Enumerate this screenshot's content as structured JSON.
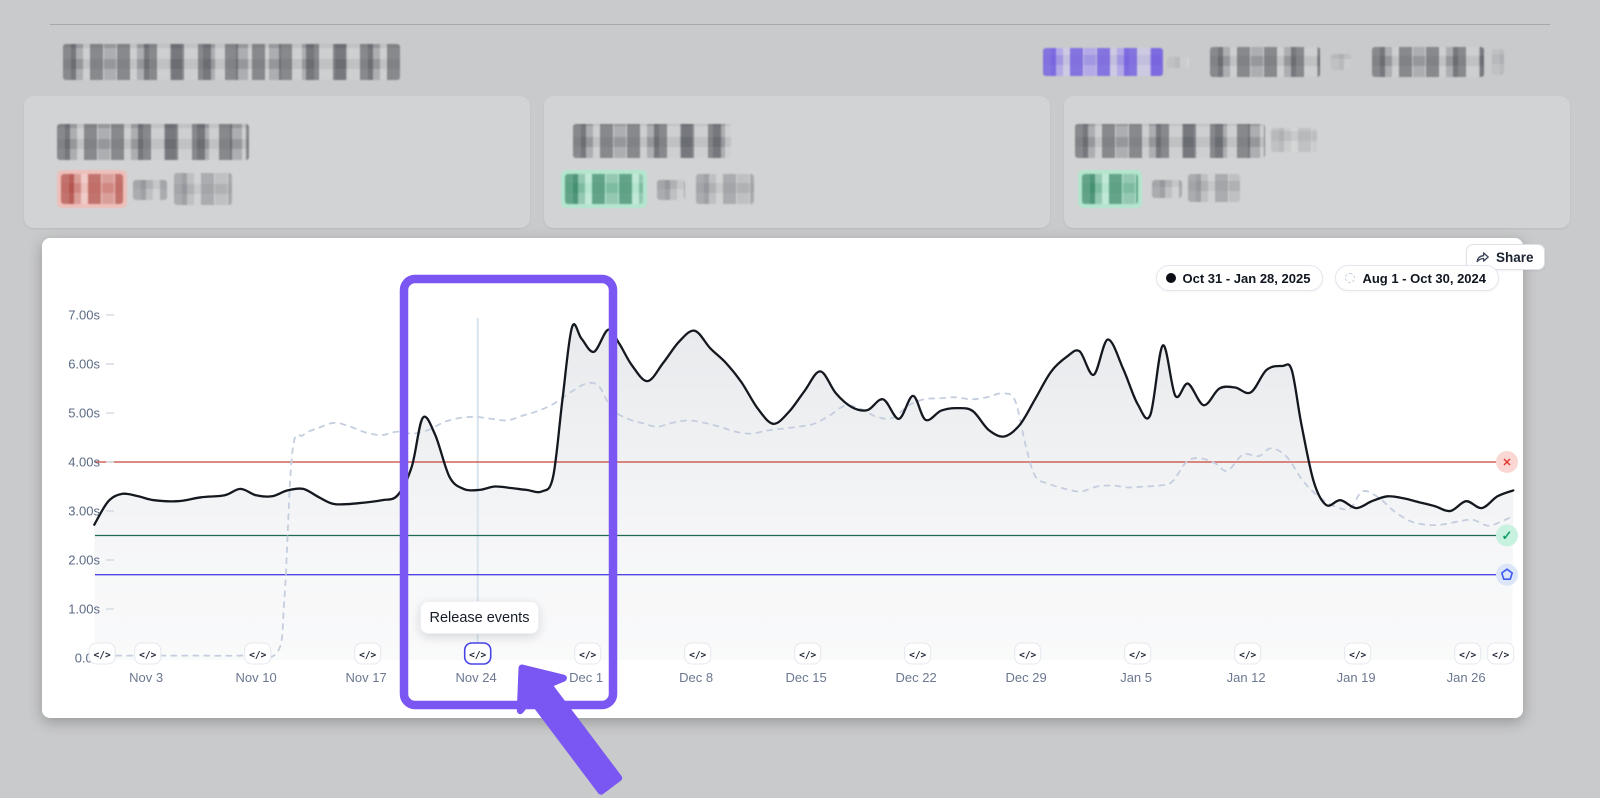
{
  "chart": {
    "share_label": "Share",
    "legend": [
      {
        "label": "Oct 31 - Jan 28, 2025",
        "marker": "solid-dot"
      },
      {
        "label": "Aug 1 - Oct 30, 2024",
        "marker": "dashed-circle"
      }
    ],
    "tooltip": "Release events",
    "release_icon_glyph": "</>"
  },
  "chart_data": {
    "type": "line",
    "unit": "seconds",
    "ylim": [
      0,
      7.3
    ],
    "grid": false,
    "legend_position": "top-right",
    "y_ticks": [
      {
        "label": "7.00s",
        "value": 7
      },
      {
        "label": "6.00s",
        "value": 6
      },
      {
        "label": "5.00s",
        "value": 5
      },
      {
        "label": "4.00s",
        "value": 4
      },
      {
        "label": "3.00s",
        "value": 3
      },
      {
        "label": "2.00s",
        "value": 2
      },
      {
        "label": "1.00s",
        "value": 1
      },
      {
        "label": "0.00",
        "value": 0
      }
    ],
    "x_tick_labels": [
      "Nov 3",
      "Nov 10",
      "Nov 17",
      "Nov 24",
      "Dec 1",
      "Dec 8",
      "Dec 15",
      "Dec 22",
      "Dec 29",
      "Jan 5",
      "Jan 12",
      "Jan 19",
      "Jan 26"
    ],
    "x_tick_days": [
      3,
      10,
      17,
      24,
      31,
      38,
      45,
      52,
      59,
      66,
      73,
      80,
      87
    ],
    "series": [
      {
        "name": "Oct 31 - Jan 28, 2025",
        "style": "solid",
        "color": "#14181f",
        "points": [
          [
            -0.3,
            2.72
          ],
          [
            0.6,
            3.2
          ],
          [
            1.5,
            3.35
          ],
          [
            2.5,
            3.3
          ],
          [
            3.5,
            3.22
          ],
          [
            5,
            3.2
          ],
          [
            6.5,
            3.28
          ],
          [
            8,
            3.32
          ],
          [
            9,
            3.45
          ],
          [
            10,
            3.32
          ],
          [
            11,
            3.3
          ],
          [
            12,
            3.42
          ],
          [
            13,
            3.45
          ],
          [
            14,
            3.28
          ],
          [
            15,
            3.14
          ],
          [
            16.5,
            3.16
          ],
          [
            18,
            3.22
          ],
          [
            19,
            3.32
          ],
          [
            19.9,
            3.9
          ],
          [
            20.6,
            4.9
          ],
          [
            21.4,
            4.55
          ],
          [
            22.3,
            3.7
          ],
          [
            23.2,
            3.45
          ],
          [
            24.2,
            3.43
          ],
          [
            25.2,
            3.5
          ],
          [
            26.2,
            3.47
          ],
          [
            27.2,
            3.43
          ],
          [
            28.2,
            3.4
          ],
          [
            28.9,
            3.7
          ],
          [
            29.5,
            5.3
          ],
          [
            30.1,
            6.75
          ],
          [
            30.7,
            6.52
          ],
          [
            31.5,
            6.25
          ],
          [
            32.4,
            6.7
          ],
          [
            33.1,
            6.42
          ],
          [
            33.9,
            5.98
          ],
          [
            34.9,
            5.65
          ],
          [
            35.9,
            6.02
          ],
          [
            36.9,
            6.45
          ],
          [
            37.9,
            6.68
          ],
          [
            38.9,
            6.32
          ],
          [
            39.9,
            6.02
          ],
          [
            40.9,
            5.62
          ],
          [
            41.9,
            5.1
          ],
          [
            42.9,
            4.78
          ],
          [
            43.9,
            5.02
          ],
          [
            44.9,
            5.45
          ],
          [
            45.9,
            5.85
          ],
          [
            46.9,
            5.4
          ],
          [
            47.9,
            5.12
          ],
          [
            48.9,
            5.06
          ],
          [
            49.9,
            5.28
          ],
          [
            50.9,
            4.88
          ],
          [
            51.8,
            5.35
          ],
          [
            52.6,
            4.86
          ],
          [
            53.6,
            5.05
          ],
          [
            54.6,
            5.1
          ],
          [
            55.6,
            5.04
          ],
          [
            56.6,
            4.66
          ],
          [
            57.6,
            4.52
          ],
          [
            58.6,
            4.76
          ],
          [
            59.6,
            5.3
          ],
          [
            60.6,
            5.85
          ],
          [
            61.6,
            6.15
          ],
          [
            62.4,
            6.26
          ],
          [
            63.3,
            5.78
          ],
          [
            64.2,
            6.5
          ],
          [
            65.2,
            5.88
          ],
          [
            66.1,
            5.18
          ],
          [
            66.9,
            4.96
          ],
          [
            67.7,
            6.38
          ],
          [
            68.5,
            5.35
          ],
          [
            69.3,
            5.6
          ],
          [
            70.3,
            5.16
          ],
          [
            71.3,
            5.5
          ],
          [
            72.3,
            5.52
          ],
          [
            73.3,
            5.42
          ],
          [
            74.3,
            5.88
          ],
          [
            75.3,
            5.96
          ],
          [
            75.9,
            5.88
          ],
          [
            76.5,
            4.8
          ],
          [
            77.3,
            3.6
          ],
          [
            78.1,
            3.12
          ],
          [
            79,
            3.22
          ],
          [
            80,
            3.06
          ],
          [
            81,
            3.2
          ],
          [
            82,
            3.3
          ],
          [
            83,
            3.26
          ],
          [
            84,
            3.18
          ],
          [
            85,
            3.1
          ],
          [
            86,
            3.0
          ],
          [
            87,
            3.2
          ],
          [
            88,
            3.06
          ],
          [
            89,
            3.3
          ],
          [
            90,
            3.42
          ]
        ]
      },
      {
        "name": "Aug 1 - Oct 30, 2024",
        "style": "dashed",
        "color": "#c4cede",
        "points": [
          [
            -0.3,
            0.05
          ],
          [
            3,
            0.05
          ],
          [
            6,
            0.05
          ],
          [
            9,
            0.05
          ],
          [
            11.3,
            0.1
          ],
          [
            11.8,
            1.2
          ],
          [
            12.3,
            4.2
          ],
          [
            13,
            4.55
          ],
          [
            14,
            4.7
          ],
          [
            15,
            4.8
          ],
          [
            16,
            4.72
          ],
          [
            17,
            4.6
          ],
          [
            18,
            4.55
          ],
          [
            19,
            4.62
          ],
          [
            20,
            4.58
          ],
          [
            21,
            4.66
          ],
          [
            22,
            4.82
          ],
          [
            23,
            4.9
          ],
          [
            24,
            4.92
          ],
          [
            25,
            4.88
          ],
          [
            26,
            4.85
          ],
          [
            27,
            4.95
          ],
          [
            28,
            5.05
          ],
          [
            29,
            5.2
          ],
          [
            30,
            5.42
          ],
          [
            31,
            5.6
          ],
          [
            31.8,
            5.55
          ],
          [
            32.6,
            5.1
          ],
          [
            33.5,
            4.9
          ],
          [
            34.5,
            4.8
          ],
          [
            35.5,
            4.72
          ],
          [
            36.5,
            4.8
          ],
          [
            37.5,
            4.85
          ],
          [
            38.5,
            4.8
          ],
          [
            39.5,
            4.72
          ],
          [
            40.5,
            4.62
          ],
          [
            41.5,
            4.58
          ],
          [
            42.5,
            4.64
          ],
          [
            43.5,
            4.68
          ],
          [
            44.5,
            4.72
          ],
          [
            45.5,
            4.78
          ],
          [
            46.5,
            4.95
          ],
          [
            47.5,
            5.15
          ],
          [
            48.5,
            5.08
          ],
          [
            49.5,
            4.92
          ],
          [
            50.5,
            4.9
          ],
          [
            51.5,
            5.15
          ],
          [
            52.5,
            5.28
          ],
          [
            53.5,
            5.3
          ],
          [
            54.5,
            5.32
          ],
          [
            55.5,
            5.28
          ],
          [
            56.5,
            5.32
          ],
          [
            57.5,
            5.4
          ],
          [
            58.3,
            5.25
          ],
          [
            59,
            4.3
          ],
          [
            59.6,
            3.7
          ],
          [
            60.5,
            3.55
          ],
          [
            61.5,
            3.45
          ],
          [
            62.5,
            3.4
          ],
          [
            63.5,
            3.5
          ],
          [
            64.5,
            3.52
          ],
          [
            65.5,
            3.48
          ],
          [
            66.5,
            3.5
          ],
          [
            67.5,
            3.52
          ],
          [
            68.3,
            3.6
          ],
          [
            69.2,
            4.0
          ],
          [
            70,
            4.08
          ],
          [
            71,
            3.98
          ],
          [
            71.8,
            3.82
          ],
          [
            72.8,
            4.15
          ],
          [
            73.8,
            4.12
          ],
          [
            74.6,
            4.28
          ],
          [
            75.6,
            4.1
          ],
          [
            76.6,
            3.62
          ],
          [
            77.6,
            3.3
          ],
          [
            78.6,
            3.1
          ],
          [
            79.6,
            3.05
          ],
          [
            80.4,
            3.4
          ],
          [
            81.4,
            3.28
          ],
          [
            82.4,
            3.0
          ],
          [
            83.4,
            2.8
          ],
          [
            84.4,
            2.72
          ],
          [
            85.4,
            2.72
          ],
          [
            86.4,
            2.78
          ],
          [
            87.4,
            2.82
          ],
          [
            88.4,
            2.7
          ],
          [
            89.2,
            2.78
          ],
          [
            90,
            2.9
          ]
        ]
      }
    ],
    "thresholds": [
      {
        "value": 4.0,
        "color": "#c8453a",
        "badge": "fail-x",
        "badge_bg": "#fbd7d4",
        "badge_fg": "#e23b31"
      },
      {
        "value": 2.5,
        "color": "#1d6a51",
        "badge": "pass-check",
        "badge_bg": "#c8f1e0",
        "badge_fg": "#12a06c"
      },
      {
        "value": 1.7,
        "color": "#5144e4",
        "badge": "goal-pentagon",
        "badge_bg": "#dce6f9",
        "badge_fg": "#3d5af1"
      }
    ],
    "release_events_days": [
      0.2,
      3.1,
      10.1,
      17.1,
      24.1,
      31.1,
      38.1,
      45.1,
      52.1,
      59.1,
      66.1,
      73.1,
      80.1,
      87.1,
      89.2
    ],
    "highlighted_event_index": 4
  },
  "colors": {
    "page_bg": "#c9cacb",
    "annotation_purple": "#7a57f2",
    "highlight_chip_border": "#4845e8",
    "hover_line": "#d9e5ee",
    "axis_text": "#5c6b84",
    "area_fill": "#6e7a8c"
  }
}
